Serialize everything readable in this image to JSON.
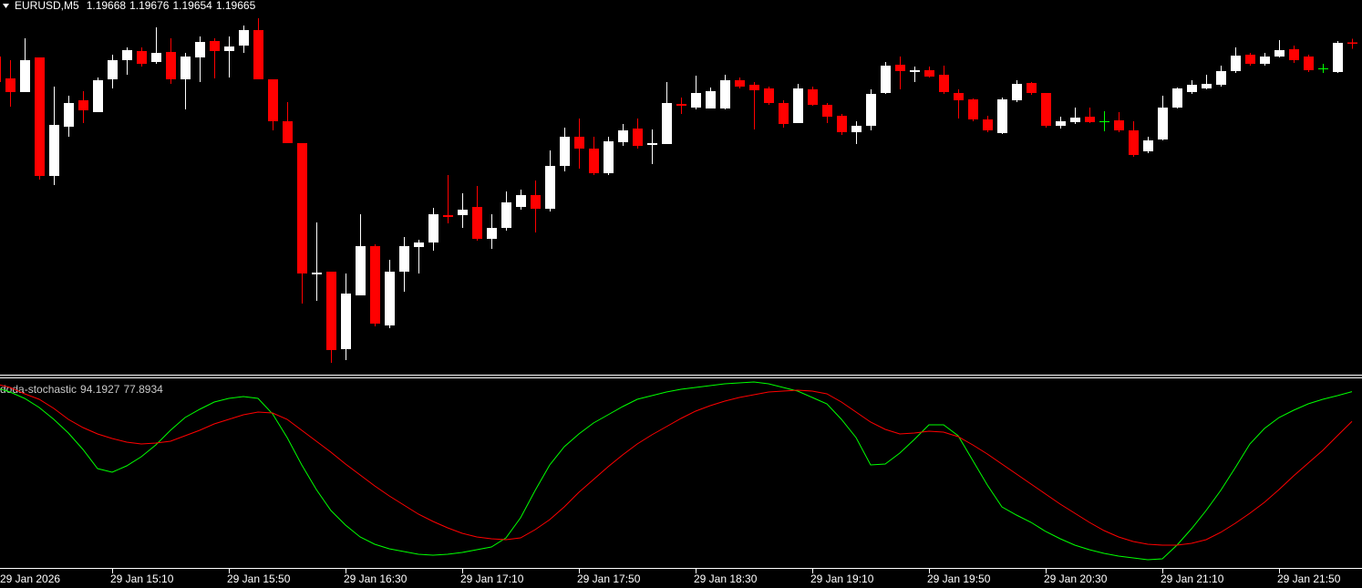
{
  "chart_data": [
    {
      "type": "candlestick",
      "title": "EURUSD,M5",
      "categories": [
        "29 Jan 2026",
        null,
        null,
        null,
        null,
        null,
        null,
        null,
        "29 Jan 15:10",
        null,
        null,
        null,
        null,
        null,
        null,
        null,
        "29 Jan 15:50",
        null,
        null,
        null,
        null,
        null,
        null,
        null,
        "29 Jan 16:30",
        null,
        null,
        null,
        null,
        null,
        null,
        null,
        "29 Jan 17:10",
        null,
        null,
        null,
        null,
        null,
        null,
        null,
        "29 Jan 17:50",
        null,
        null,
        null,
        null,
        null,
        null,
        null,
        "29 Jan 18:30",
        null,
        null,
        null,
        null,
        null,
        null,
        null,
        "29 Jan 19:10",
        null,
        null,
        null,
        null,
        null,
        null,
        null,
        "29 Jan 19:50",
        null,
        null,
        null,
        null,
        null,
        null,
        null,
        "29 Jan 20:30",
        null,
        null,
        null,
        null,
        null,
        null,
        null,
        "29 Jan 21:10",
        null,
        null,
        null,
        null,
        null,
        null,
        null,
        "29 Jan 21:50",
        null,
        null,
        null,
        null,
        null
      ],
      "open": [
        1.19637,
        1.19589,
        1.19559,
        1.19635,
        1.19375,
        1.19483,
        1.19541,
        1.19515,
        1.19587,
        1.19629,
        1.19649,
        1.19625,
        1.19647,
        1.19587,
        1.19635,
        1.19671,
        1.19649,
        1.19661,
        1.19695,
        1.19587,
        1.19495,
        1.19447,
        1.19159,
        1.19165,
        1.18995,
        1.19113,
        1.19221,
        1.19047,
        1.19165,
        1.19219,
        1.19229,
        1.19289,
        1.19289,
        1.19307,
        1.19237,
        1.19261,
        1.19307,
        1.19333,
        1.19303,
        1.19397,
        1.19461,
        1.19435,
        1.19381,
        1.19449,
        1.19479,
        1.19443,
        1.19445,
        1.19533,
        1.19525,
        1.19523,
        1.19523,
        1.19585,
        1.19575,
        1.19567,
        1.19535,
        1.19491,
        1.19565,
        1.19531,
        1.19507,
        1.19471,
        1.19485,
        1.19557,
        1.19619,
        1.19603,
        1.19607,
        1.19597,
        1.19557,
        1.19543,
        1.19499,
        1.19469,
        1.19541,
        1.19579,
        1.19557,
        1.19485,
        1.19493,
        1.19505,
        1.19495,
        1.19497,
        1.19475,
        1.19429,
        1.19455,
        1.19525,
        1.19559,
        1.19567,
        1.19575,
        1.19605,
        1.19641,
        1.19621,
        1.19637,
        1.19653,
        1.19637,
        1.19611,
        1.19603,
        1.19668
      ],
      "high": [
        1.19637,
        1.19629,
        1.19677,
        1.19635,
        1.19571,
        1.19551,
        1.19561,
        1.19591,
        1.19641,
        1.19657,
        1.19657,
        1.19701,
        1.19677,
        1.19645,
        1.19681,
        1.19677,
        1.19681,
        1.19705,
        1.19721,
        1.19587,
        1.19537,
        1.19447,
        1.19273,
        1.19165,
        1.19161,
        1.19291,
        1.19225,
        1.19191,
        1.19241,
        1.19235,
        1.19305,
        1.19377,
        1.19337,
        1.19353,
        1.19291,
        1.19341,
        1.19345,
        1.19365,
        1.19431,
        1.19481,
        1.19501,
        1.19461,
        1.19461,
        1.19489,
        1.19501,
        1.19477,
        1.19581,
        1.19547,
        1.19595,
        1.19569,
        1.19597,
        1.19591,
        1.19581,
        1.19571,
        1.19541,
        1.19577,
        1.19571,
        1.19535,
        1.19511,
        1.19495,
        1.19565,
        1.19625,
        1.19637,
        1.19615,
        1.19615,
        1.19617,
        1.19565,
        1.19545,
        1.19507,
        1.19547,
        1.19585,
        1.19581,
        1.19557,
        1.19505,
        1.19525,
        1.19525,
        1.19517,
        1.19515,
        1.19495,
        1.19461,
        1.19551,
        1.19569,
        1.19585,
        1.19597,
        1.19617,
        1.19657,
        1.19645,
        1.19645,
        1.19673,
        1.19661,
        1.19641,
        1.19621,
        1.19671,
        1.19676
      ],
      "low": [
        1.19561,
        1.19527,
        1.19559,
        1.19367,
        1.19355,
        1.19461,
        1.19491,
        1.19515,
        1.19567,
        1.19597,
        1.19615,
        1.19621,
        1.19577,
        1.19521,
        1.19581,
        1.19589,
        1.19591,
        1.19645,
        1.19587,
        1.19475,
        1.19447,
        1.19095,
        1.19101,
        1.18965,
        1.18971,
        1.19113,
        1.19045,
        1.19041,
        1.19121,
        1.19161,
        1.19211,
        1.19271,
        1.19261,
        1.19233,
        1.19215,
        1.19255,
        1.19301,
        1.19251,
        1.19297,
        1.19385,
        1.19391,
        1.19377,
        1.19377,
        1.19441,
        1.19435,
        1.19401,
        1.19445,
        1.19511,
        1.19521,
        1.19523,
        1.19521,
        1.19567,
        1.19477,
        1.19531,
        1.19481,
        1.19491,
        1.19529,
        1.19491,
        1.19465,
        1.19445,
        1.19475,
        1.19555,
        1.19565,
        1.19581,
        1.19591,
        1.19555,
        1.19501,
        1.19495,
        1.19471,
        1.19467,
        1.19537,
        1.19553,
        1.19481,
        1.19479,
        1.19489,
        1.19491,
        1.19473,
        1.19471,
        1.19417,
        1.19425,
        1.19453,
        1.19523,
        1.19555,
        1.19565,
        1.19571,
        1.19601,
        1.19617,
        1.19617,
        1.19635,
        1.19623,
        1.19603,
        1.19601,
        1.19601,
        1.19654
      ],
      "close": [
        1.19581,
        1.19559,
        1.19629,
        1.19375,
        1.19487,
        1.19535,
        1.19519,
        1.19585,
        1.19629,
        1.19651,
        1.19621,
        1.19645,
        1.19587,
        1.19637,
        1.19669,
        1.19649,
        1.19659,
        1.19695,
        1.19587,
        1.19495,
        1.19447,
        1.19161,
        1.19163,
        1.18993,
        1.19117,
        1.19221,
        1.19051,
        1.19165,
        1.19221,
        1.19229,
        1.19291,
        1.19285,
        1.19301,
        1.19237,
        1.19261,
        1.19317,
        1.19333,
        1.19303,
        1.19397,
        1.19461,
        1.19435,
        1.19381,
        1.19451,
        1.19475,
        1.19441,
        1.19447,
        1.19535,
        1.19529,
        1.19557,
        1.19561,
        1.19585,
        1.19571,
        1.19563,
        1.19535,
        1.19489,
        1.19567,
        1.19531,
        1.19505,
        1.19471,
        1.19485,
        1.19555,
        1.19617,
        1.19605,
        1.19607,
        1.19593,
        1.19559,
        1.19541,
        1.19499,
        1.19475,
        1.19543,
        1.19577,
        1.19557,
        1.19485,
        1.19495,
        1.19503,
        1.19493,
        1.19495,
        1.19475,
        1.19421,
        1.19453,
        1.19525,
        1.19567,
        1.19575,
        1.19577,
        1.19605,
        1.19639,
        1.19621,
        1.19637,
        1.19651,
        1.19629,
        1.19607,
        1.19611,
        1.19667,
        1.19665
      ],
      "ylim": [
        1.18941,
        1.19733
      ],
      "up_color": "#ffffff",
      "down_color": "#ff0000",
      "doji_color": "#00ff00"
    },
    {
      "type": "line",
      "title": "doda-stochastic",
      "ylim": [
        0,
        100
      ],
      "series": [
        {
          "color": "#00ff00",
          "values": [
            96.5,
            94,
            90.5,
            85.5,
            79,
            71.5,
            62.5,
            52,
            50,
            53.5,
            58.5,
            65,
            73,
            80,
            84.5,
            88.5,
            90.5,
            91.5,
            90.5,
            82,
            69,
            54,
            40.5,
            29,
            21,
            14.5,
            10.5,
            8,
            6.5,
            5,
            4.5,
            5,
            6,
            7.5,
            9,
            14,
            25,
            40,
            54,
            64,
            71,
            77,
            81.5,
            86,
            90,
            92,
            94,
            95.5,
            96.5,
            97.5,
            98.5,
            99,
            99.5,
            98.5,
            96.5,
            94.5,
            91,
            87.5,
            79,
            69,
            54,
            54.5,
            60.5,
            68,
            76,
            76,
            70,
            56.5,
            43,
            31,
            26.5,
            22.5,
            17.5,
            13.5,
            10,
            7.5,
            5.5,
            4,
            3,
            2,
            2.5,
            10,
            19,
            29,
            40,
            52.5,
            65.5,
            74,
            80,
            84,
            87.5,
            90,
            92,
            94.1927
          ]
        },
        {
          "color": "#ff0000",
          "values": [
            98.5,
            96.5,
            93,
            90,
            85,
            79,
            74.5,
            71,
            68.5,
            66.5,
            65.5,
            66,
            67,
            70,
            73,
            76.5,
            79,
            81.5,
            83,
            82.5,
            79,
            73,
            67,
            61,
            54.5,
            48.5,
            42.5,
            37,
            32,
            27,
            23,
            19.5,
            16.5,
            14.5,
            13.5,
            13,
            14,
            18.5,
            24,
            31,
            39,
            46,
            53,
            59.5,
            65.5,
            70.5,
            75,
            79.5,
            83.5,
            86.5,
            89,
            91,
            92.5,
            94,
            94.5,
            95,
            94.5,
            93,
            88.5,
            83,
            77.5,
            73.5,
            71,
            71.5,
            72.5,
            72,
            69.5,
            65,
            60,
            54.5,
            49,
            43.5,
            38,
            32.5,
            27.5,
            22.5,
            18,
            14.5,
            12,
            10.5,
            10,
            10,
            11,
            13,
            17,
            22,
            27.5,
            33.5,
            40.5,
            48,
            55,
            62,
            70,
            77.8934
          ]
        }
      ]
    }
  ]
}
